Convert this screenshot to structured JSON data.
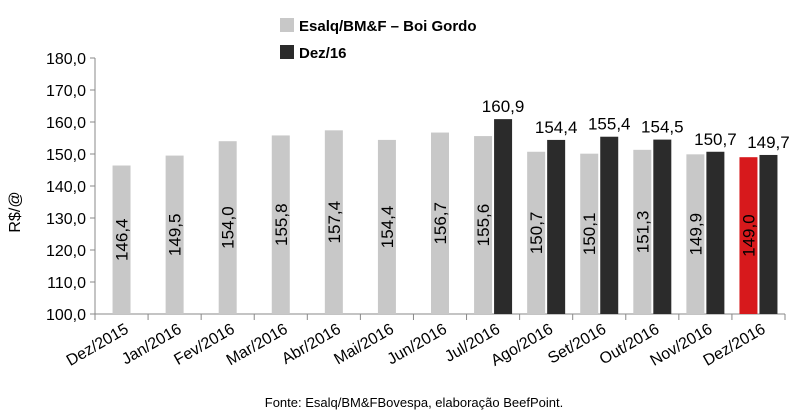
{
  "chart_data": {
    "type": "bar",
    "ylabel": "R$/@",
    "ylim": [
      100,
      180
    ],
    "yticks": [
      "100,0",
      "110,0",
      "120,0",
      "130,0",
      "140,0",
      "150,0",
      "160,0",
      "170,0",
      "180,0"
    ],
    "ytick_values": [
      100,
      110,
      120,
      130,
      140,
      150,
      160,
      170,
      180
    ],
    "grid": false,
    "legend_position": "top",
    "categories": [
      "Dez/2015",
      "Jan/2016",
      "Fev/2016",
      "Mar/2016",
      "Abr/2016",
      "Mai/2016",
      "Jun/2016",
      "Jul/2016",
      "Ago/2016",
      "Set/2016",
      "Out/2016",
      "Nov/2016",
      "Dez/2016"
    ],
    "series": [
      {
        "name": "Esalq/BM&F – Boi Gordo",
        "color": "#c8c8c8",
        "values": [
          146.4,
          149.5,
          154.0,
          155.8,
          157.4,
          154.4,
          156.7,
          155.6,
          150.7,
          150.1,
          151.3,
          149.9,
          149.0
        ],
        "labels": [
          "146,4",
          "149,5",
          "154,0",
          "155,8",
          "157,4",
          "154,4",
          "156,7",
          "155,6",
          "150,7",
          "150,1",
          "151,3",
          "149,9",
          "149,0"
        ],
        "highlight_index": 12,
        "highlight_color": "#d7191c"
      },
      {
        "name": "Dez/16",
        "color": "#2b2b2b",
        "values": [
          null,
          null,
          null,
          null,
          null,
          null,
          null,
          160.9,
          154.4,
          155.4,
          154.5,
          150.7,
          149.7
        ],
        "labels": [
          null,
          null,
          null,
          null,
          null,
          null,
          null,
          "160,9",
          "154,4",
          "155,4",
          "154,5",
          "150,7",
          "149,7"
        ]
      }
    ],
    "source": "Fonte: Esalq/BM&FBovespa, elaboração BeefPoint."
  }
}
